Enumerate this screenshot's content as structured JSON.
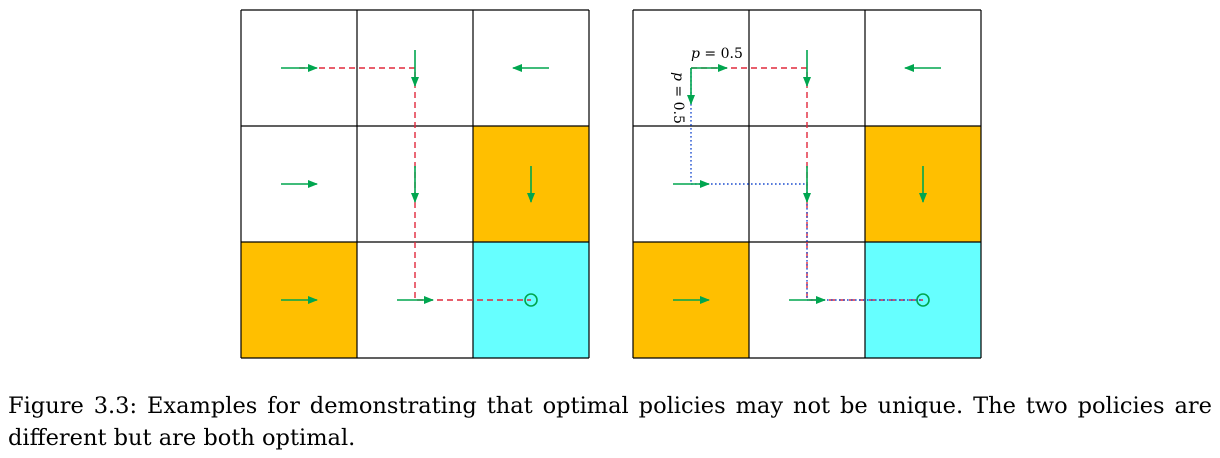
{
  "colors": {
    "grid_line": "#000000",
    "forbidden_cell": "#FFBF00",
    "target_cell": "#66FFFF",
    "empty_cell": "#FFFFFF",
    "policy_arrow": "#00A64F",
    "trajectory_1": "#E0283C",
    "trajectory_2": "#1F4FCF",
    "target_marker": "#00A64F"
  },
  "grids": [
    {
      "name": "left-policy-grid",
      "rows": 3,
      "cols": 3,
      "cells": [
        {
          "row": 1,
          "col": 1,
          "type": "empty",
          "action": "right"
        },
        {
          "row": 1,
          "col": 2,
          "type": "empty",
          "action": "down"
        },
        {
          "row": 1,
          "col": 3,
          "type": "empty",
          "action": "left"
        },
        {
          "row": 2,
          "col": 1,
          "type": "empty",
          "action": "right"
        },
        {
          "row": 2,
          "col": 2,
          "type": "empty",
          "action": "down"
        },
        {
          "row": 2,
          "col": 3,
          "type": "forbidden",
          "action": "down"
        },
        {
          "row": 3,
          "col": 1,
          "type": "forbidden",
          "action": "right"
        },
        {
          "row": 3,
          "col": 2,
          "type": "empty",
          "action": "right"
        },
        {
          "row": 3,
          "col": 3,
          "type": "target",
          "action": "stay"
        }
      ],
      "trajectories": [
        {
          "style": "dashed",
          "color": "trajectory_1",
          "path": [
            [
              1,
              1
            ],
            [
              1,
              2
            ],
            [
              2,
              2
            ],
            [
              3,
              2
            ],
            [
              3,
              3
            ]
          ]
        }
      ],
      "probability_labels": []
    },
    {
      "name": "right-policy-grid",
      "rows": 3,
      "cols": 3,
      "cells": [
        {
          "row": 1,
          "col": 1,
          "type": "empty",
          "action": "right-or-down"
        },
        {
          "row": 1,
          "col": 2,
          "type": "empty",
          "action": "down"
        },
        {
          "row": 1,
          "col": 3,
          "type": "empty",
          "action": "left"
        },
        {
          "row": 2,
          "col": 1,
          "type": "empty",
          "action": "right"
        },
        {
          "row": 2,
          "col": 2,
          "type": "empty",
          "action": "down"
        },
        {
          "row": 2,
          "col": 3,
          "type": "forbidden",
          "action": "down"
        },
        {
          "row": 3,
          "col": 1,
          "type": "forbidden",
          "action": "right"
        },
        {
          "row": 3,
          "col": 2,
          "type": "empty",
          "action": "right"
        },
        {
          "row": 3,
          "col": 3,
          "type": "target",
          "action": "stay"
        }
      ],
      "trajectories": [
        {
          "style": "dashed",
          "color": "trajectory_1",
          "path": [
            [
              1,
              1
            ],
            [
              1,
              2
            ],
            [
              2,
              2
            ],
            [
              3,
              2
            ],
            [
              3,
              3
            ]
          ]
        },
        {
          "style": "dotted",
          "color": "trajectory_2",
          "path": [
            [
              1,
              1
            ],
            [
              2,
              1
            ],
            [
              2,
              2
            ],
            [
              3,
              2
            ],
            [
              3,
              3
            ]
          ]
        }
      ],
      "probability_labels": [
        {
          "direction": "right",
          "var": "p",
          "rest": " = 0.5"
        },
        {
          "direction": "down",
          "var": "p",
          "rest": " = 0.5"
        }
      ]
    }
  ],
  "caption": "Figure 3.3: Examples for demonstrating that optimal policies may not be unique. The two policies are different but are both optimal."
}
